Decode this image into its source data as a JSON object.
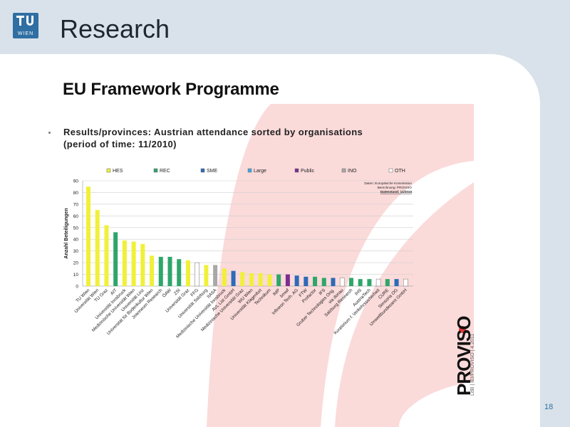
{
  "slide": {
    "title": "Research",
    "logo_text": "WIEN",
    "subtitle": "EU Framework Programme",
    "chart_title_line1": "Results/provinces: Austrian attendance sorted by organisations",
    "chart_title_line2": "(period of time: 11/2010)",
    "page_number": "18",
    "footer_brand": "PROVISO",
    "footer_sub": "LdB | IEI/PROVISO | 4.2011",
    "source_note": [
      "Daten: Europäische Kommission",
      "Berechnung: PROVISO",
      "Datenstand: 11/2010"
    ]
  },
  "colors": {
    "HES": "#f0f03a",
    "REC": "#2ea66a",
    "SME": "#2d6ab8",
    "Large": "#3fa7e0",
    "Public": "#7a2f8f",
    "INO": "#a8a8a8",
    "OTH": "#ffffff",
    "accent": "#2f6fa3",
    "background_shape": "#fbdada"
  },
  "chart_data": {
    "type": "bar",
    "ylabel": "Anzahl Beteiligungen",
    "ylim": [
      0,
      90
    ],
    "yticks": [
      0,
      10,
      20,
      30,
      40,
      50,
      60,
      70,
      80,
      90
    ],
    "grid": true,
    "legend_position": "top",
    "legend": [
      "HES",
      "REC",
      "SME",
      "Large",
      "Public",
      "INO",
      "OTH"
    ],
    "categories": [
      "TU Wien",
      "Universität Wien",
      "TU Graz",
      "AIT",
      "Universität Innsbruck",
      "Medizinische Universität Wien",
      "Universität Linz",
      "Universität für Bodenkultur Wien",
      "Joanneum Research",
      "ÖAW",
      "ZSI",
      "Universität Graz",
      "FFG",
      "Universität Salzburg",
      "IIASA",
      "Medizinische Universität Innsbruck",
      "AVL List GmbH",
      "Medizinische Universität Graz",
      "WU Wien",
      "Universität Klagenfurt",
      "Technikum",
      "IMP",
      "bmwf",
      "Infineon Tech. AG",
      "FTW",
      "Profactor",
      "IFS",
      "Gruber Technologies Orig.",
      "via donau",
      "Salzburg Research",
      "IHS",
      "AustriaTech",
      "Kuratorium f. Verkehrssicherheit",
      "CURE",
      "Sensoria OG",
      "Umweltbundesamt GmbH"
    ],
    "values": [
      85,
      65,
      52,
      46,
      39,
      38,
      36,
      26,
      25,
      25,
      23,
      22,
      20,
      18,
      18,
      15,
      13,
      12,
      11,
      11,
      10,
      10,
      10,
      9,
      8,
      8,
      7,
      7,
      7,
      7,
      6,
      6,
      6,
      6,
      6,
      6
    ],
    "types": [
      "HES",
      "HES",
      "HES",
      "REC",
      "HES",
      "HES",
      "HES",
      "HES",
      "REC",
      "REC",
      "REC",
      "HES",
      "OTH",
      "HES",
      "INO",
      "HES",
      "SME",
      "HES",
      "HES",
      "HES",
      "HES",
      "REC",
      "Public",
      "SME",
      "SME",
      "REC",
      "REC",
      "SME",
      "OTH",
      "REC",
      "REC",
      "REC",
      "OTH",
      "REC",
      "SME",
      "OTH"
    ]
  }
}
